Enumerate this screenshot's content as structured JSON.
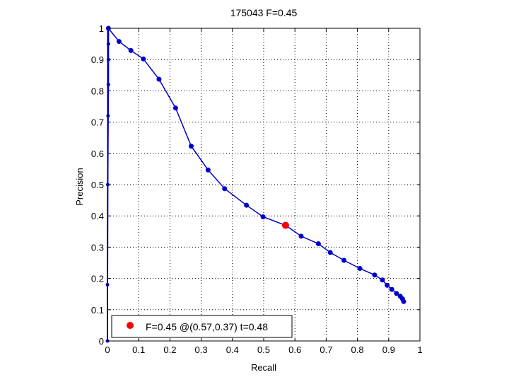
{
  "chart_data": {
    "type": "line",
    "title": "175043 F=0.45",
    "xlabel": "Recall",
    "ylabel": "Precision",
    "xlim": [
      0,
      1
    ],
    "ylim": [
      0,
      1
    ],
    "xticks": [
      0,
      0.1,
      0.2,
      0.3,
      0.4,
      0.5,
      0.6,
      0.7,
      0.8,
      0.9,
      1
    ],
    "yticks": [
      0,
      0.1,
      0.2,
      0.3,
      0.4,
      0.5,
      0.6,
      0.7,
      0.8,
      0.9,
      1
    ],
    "xtick_labels": [
      "0",
      "0.1",
      "0.2",
      "0.3",
      "0.4",
      "0.5",
      "0.6",
      "0.7",
      "0.8",
      "0.9",
      "1"
    ],
    "ytick_labels": [
      "0",
      "0.1",
      "0.2",
      "0.3",
      "0.4",
      "0.5",
      "0.6",
      "0.7",
      "0.8",
      "0.9",
      "1"
    ],
    "grid": true,
    "grid_style": "dotted",
    "series": [
      {
        "color": "#0000cc",
        "marker": "circle",
        "points": [
          {
            "x": 0.003,
            "y": 1.0
          },
          {
            "x": 0.037,
            "y": 0.958
          },
          {
            "x": 0.075,
            "y": 0.929
          },
          {
            "x": 0.115,
            "y": 0.902
          },
          {
            "x": 0.165,
            "y": 0.837
          },
          {
            "x": 0.218,
            "y": 0.745
          },
          {
            "x": 0.268,
            "y": 0.623
          },
          {
            "x": 0.322,
            "y": 0.547
          },
          {
            "x": 0.375,
            "y": 0.487
          },
          {
            "x": 0.445,
            "y": 0.434
          },
          {
            "x": 0.498,
            "y": 0.397
          },
          {
            "x": 0.57,
            "y": 0.37
          },
          {
            "x": 0.62,
            "y": 0.335
          },
          {
            "x": 0.675,
            "y": 0.311
          },
          {
            "x": 0.713,
            "y": 0.283
          },
          {
            "x": 0.757,
            "y": 0.258
          },
          {
            "x": 0.808,
            "y": 0.232
          },
          {
            "x": 0.855,
            "y": 0.211
          },
          {
            "x": 0.88,
            "y": 0.195
          },
          {
            "x": 0.895,
            "y": 0.178
          },
          {
            "x": 0.91,
            "y": 0.165
          },
          {
            "x": 0.925,
            "y": 0.152
          },
          {
            "x": 0.937,
            "y": 0.143
          },
          {
            "x": 0.944,
            "y": 0.135
          },
          {
            "x": 0.948,
            "y": 0.126
          }
        ],
        "low_recall_points": [
          {
            "x": 0.0,
            "y": 0.0
          },
          {
            "x": 0.0,
            "y": 0.18
          },
          {
            "x": 0.001,
            "y": 0.5
          },
          {
            "x": 0.002,
            "y": 0.72
          },
          {
            "x": 0.003,
            "y": 0.82
          },
          {
            "x": 0.003,
            "y": 0.9
          },
          {
            "x": 0.003,
            "y": 0.95
          },
          {
            "x": 0.003,
            "y": 1.0
          }
        ]
      }
    ],
    "best_point": {
      "x": 0.57,
      "y": 0.37,
      "color": "#ff0000"
    },
    "legend": {
      "position": "bottom-left",
      "entries": [
        {
          "label": "F=0.45 @(0.57,0.37) t=0.48",
          "color": "#ff0000",
          "marker": "circle"
        }
      ]
    }
  }
}
